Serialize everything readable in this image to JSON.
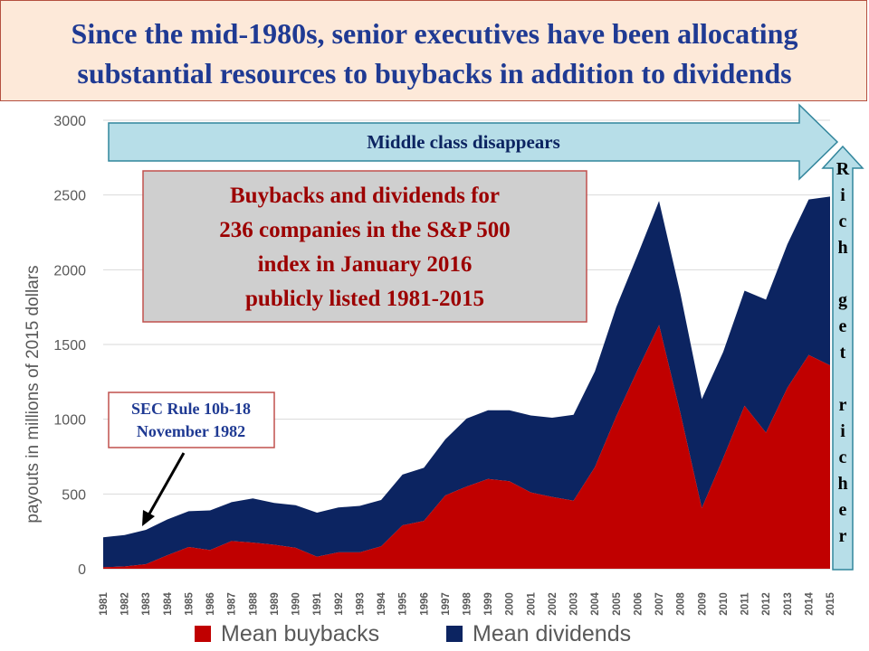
{
  "title": {
    "line1": "Since the mid-1980s, senior executives have been allocating",
    "line2": "substantial resources to buybacks in addition to dividends"
  },
  "callouts": {
    "middle_class": "Middle class disappears",
    "rich": [
      "R",
      "i",
      "c",
      "h",
      "",
      "g",
      "e",
      "t",
      "",
      "r",
      "i",
      "c",
      "h",
      "e",
      "r"
    ],
    "box_lines": [
      "Buybacks and dividends for",
      "236 companies in the S&P 500",
      "index in January 2016",
      "publicly listed 1981-2015"
    ],
    "sec_lines": [
      "SEC Rule 10b-18",
      "November 1982"
    ]
  },
  "colors": {
    "buybacks": "#c00000",
    "dividends": "#0c2461",
    "title_text": "#1f3a93",
    "title_bg": "#fde9d9",
    "arrow_fill": "#b7dee8",
    "box_text": "#9c0000"
  },
  "chart_data": {
    "type": "area",
    "stacked": true,
    "title": "",
    "xlabel": "",
    "ylabel": "payouts in  millions of 2015 dollars",
    "ylim": [
      0,
      3000
    ],
    "yticks": [
      0,
      500,
      1000,
      1500,
      2000,
      2500,
      3000
    ],
    "x": [
      "1981",
      "1982",
      "1983",
      "1984",
      "1985",
      "1986",
      "1987",
      "1988",
      "1989",
      "1990",
      "1991",
      "1992",
      "1993",
      "1994",
      "1995",
      "1996",
      "1997",
      "1998",
      "1999",
      "2000",
      "2001",
      "2002",
      "2003",
      "2004",
      "2005",
      "2006",
      "2007",
      "2008",
      "2009",
      "2010",
      "2011",
      "2012",
      "2013",
      "2014",
      "2015"
    ],
    "series": [
      {
        "name": "Mean buybacks",
        "values": [
          10,
          15,
          30,
          90,
          145,
          125,
          185,
          175,
          160,
          140,
          80,
          110,
          110,
          150,
          290,
          320,
          490,
          550,
          600,
          585,
          510,
          480,
          455,
          680,
          1020,
          1330,
          1630,
          1040,
          405,
          740,
          1090,
          910,
          1210,
          1430,
          1360
        ]
      },
      {
        "name": "Mean dividends",
        "values": [
          200,
          210,
          230,
          240,
          240,
          265,
          260,
          295,
          280,
          285,
          295,
          300,
          310,
          310,
          340,
          355,
          375,
          455,
          460,
          475,
          515,
          530,
          575,
          640,
          730,
          770,
          830,
          800,
          730,
          710,
          770,
          890,
          960,
          1040,
          1130
        ]
      }
    ],
    "legend": {
      "position": "bottom"
    },
    "grid": true
  }
}
